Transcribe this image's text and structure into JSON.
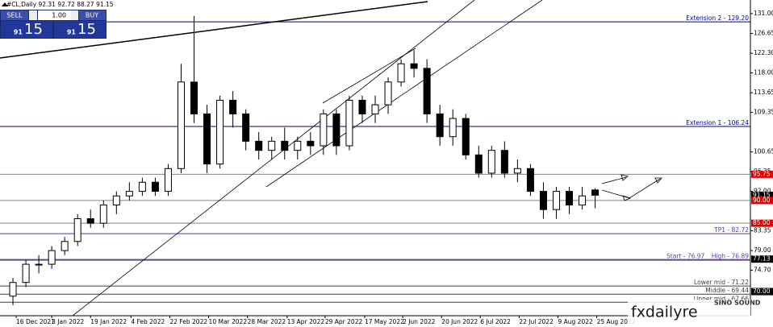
{
  "chart_data": {
    "type": "candlestick",
    "symbol": "#CL,Daily",
    "x": [
      4,
      8,
      12,
      16,
      20,
      24,
      28,
      32,
      36,
      40,
      44,
      48,
      52,
      56,
      60,
      64,
      68,
      72,
      76,
      80,
      84,
      88,
      92,
      96,
      100,
      104,
      108,
      112,
      116,
      120,
      124,
      128,
      132,
      136,
      140,
      144,
      148,
      152,
      156,
      160,
      164,
      168,
      172,
      176,
      180,
      184
    ],
    "open": [
      69,
      72,
      76,
      76,
      79,
      81,
      86,
      85,
      89,
      91,
      92,
      94,
      92,
      97,
      116,
      109,
      98,
      112,
      109,
      103,
      101,
      103,
      101,
      103,
      102,
      109,
      102,
      112,
      109,
      111,
      116,
      120,
      119,
      109,
      104,
      108,
      100,
      96,
      101,
      96,
      97,
      92,
      88,
      92,
      89,
      92.31
    ],
    "high": [
      73,
      77,
      78,
      80,
      82,
      87,
      88,
      90,
      92,
      94,
      95,
      95,
      98,
      120,
      130.5,
      111,
      113,
      114,
      110,
      105,
      104,
      106,
      104,
      105,
      110,
      110,
      113,
      113,
      113,
      117,
      121,
      123,
      121,
      111,
      110,
      109,
      102,
      102,
      103,
      99,
      98,
      94,
      93,
      93,
      93,
      92.72
    ],
    "low": [
      67,
      71,
      74,
      75,
      78,
      80,
      84,
      84,
      87,
      90,
      91,
      91,
      91,
      96,
      107,
      96,
      97,
      106,
      101,
      99,
      99,
      99,
      99,
      100,
      100,
      100,
      101,
      107,
      107,
      109,
      115,
      117,
      107,
      102,
      102,
      99,
      95,
      95,
      95,
      94,
      91,
      86,
      86,
      87,
      88,
      88.27
    ],
    "close": [
      72,
      76,
      76,
      79,
      81,
      86,
      85,
      89,
      91,
      92,
      94,
      92,
      97,
      116,
      109,
      98,
      112,
      109,
      103,
      101,
      103,
      101,
      103,
      102,
      109,
      102,
      112,
      109,
      111,
      116,
      120,
      119,
      109,
      104,
      108,
      100,
      96,
      101,
      96,
      97,
      92,
      88,
      92,
      89,
      91,
      91.15
    ],
    "up_color": "#ffffff",
    "down_color": "#000000",
    "xlim": [
      0,
      232
    ],
    "xticks": [
      {
        "value": 5,
        "label": "16 Dec 2021"
      },
      {
        "value": 16,
        "label": "3 Jan 2022"
      },
      {
        "value": 28,
        "label": "19 Jan 2022"
      },
      {
        "value": 40.5,
        "label": "4 Feb 2022"
      },
      {
        "value": 52.5,
        "label": "22 Feb 2022"
      },
      {
        "value": 64.5,
        "label": "10 Mar 2022"
      },
      {
        "value": 76.5,
        "label": "28 Mar 2022"
      },
      {
        "value": 88.75,
        "label": "13 Apr 2022"
      },
      {
        "value": 100.5,
        "label": "29 Apr 2022"
      },
      {
        "value": 112.75,
        "label": "17 May 2022"
      },
      {
        "value": 124.5,
        "label": "2 Jun 2022"
      },
      {
        "value": 136.5,
        "label": "20 Jun 2022"
      },
      {
        "value": 148.5,
        "label": "6 Jul 2022"
      },
      {
        "value": 160.5,
        "label": "22 Jul 2022"
      },
      {
        "value": 172.5,
        "label": "9 Aug 2022"
      },
      {
        "value": 184.5,
        "label": "25 Aug 2022"
      }
    ],
    "ylim": [
      64.7,
      134.0
    ],
    "yticks": [
      {
        "value": 131,
        "label": "131.00"
      },
      {
        "value": 126.65,
        "label": "126.65"
      },
      {
        "value": 122.3,
        "label": "122.30"
      },
      {
        "value": 118,
        "label": "118.00"
      },
      {
        "value": 113.65,
        "label": "113.65"
      },
      {
        "value": 109.35,
        "label": "109.35"
      },
      {
        "value": 100.65,
        "label": "100.65"
      },
      {
        "value": 96.35,
        "label": "96.35"
      },
      {
        "value": 92,
        "label": "92.00"
      },
      {
        "value": 83.35,
        "label": "83.35"
      },
      {
        "value": 79,
        "label": "79.00"
      },
      {
        "value": 74.7,
        "label": "74.70"
      }
    ],
    "levels": [
      {
        "value": 129.2,
        "label": "Extension 2 - 129.20",
        "color": "#000080"
      },
      {
        "value": 106.24,
        "label": "Extension 1 - 106.24",
        "color": "#000080"
      },
      {
        "value": 95.75,
        "label": "95.75",
        "color": "#808080"
      },
      {
        "value": 90,
        "label": "90.00",
        "color": "#808080"
      },
      {
        "value": 85,
        "label": "85.00",
        "color": "#808080"
      },
      {
        "value": 82.72,
        "label": "TP1 - 82.72",
        "color": "#4040c0"
      },
      {
        "value": 76.97,
        "label": "Start - 76.97 _ High - 76.89",
        "color": "#6040a0"
      },
      {
        "value": 71.22,
        "label": "Lower mid - 71.22",
        "color": "#404040"
      },
      {
        "value": 69.44,
        "label": "Middle - 69.44",
        "color": "#404040"
      },
      {
        "value": 67.66,
        "label": "Upper mid - 67.66",
        "color": "#404040"
      }
    ],
    "price_tags": [
      {
        "value": 95.75,
        "label": "95.75",
        "color": "#e00000"
      },
      {
        "value": 91.15,
        "label": "91.15",
        "color": "#000000"
      },
      {
        "value": 90,
        "label": "90.00",
        "color": "#e00000"
      },
      {
        "value": 85,
        "label": "85.00",
        "color": "#e00000"
      },
      {
        "value": 77.13,
        "label": "77.13",
        "color": "#000000"
      },
      {
        "value": 70,
        "label": "70.00",
        "color": "#000000"
      }
    ]
  },
  "trade_panel": {
    "sell": "SELL",
    "buy": "BUY",
    "volume": "1.00",
    "bid_big": "91",
    "bid_small": "15",
    "ask_big": "91",
    "ask_small": "15"
  },
  "watermark": {
    "site": "fxdailyre",
    "brand": "SINO SOUND"
  }
}
